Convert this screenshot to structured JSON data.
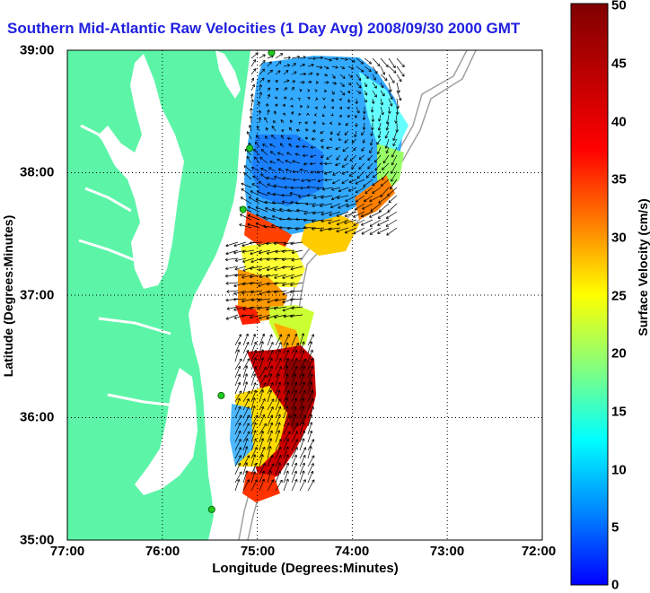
{
  "title": "Southern Mid-Atlantic Raw Velocities (1 Day Avg) 2008/09/30 2000 GMT",
  "x_axis": {
    "label": "Longitude (Degrees:Minutes)",
    "ticks": [
      "77:00",
      "76:00",
      "75:00",
      "74:00",
      "73:00",
      "72:00"
    ],
    "tick_values": [
      -77,
      -76,
      -75,
      -74,
      -73,
      -72
    ],
    "range": [
      -77,
      -72
    ]
  },
  "y_axis": {
    "label": "Latitude (Degrees:Minutes)",
    "ticks": [
      "39:00",
      "38:00",
      "37:00",
      "36:00",
      "35:00"
    ],
    "tick_values": [
      39,
      38,
      37,
      36,
      35
    ],
    "range": [
      35,
      39
    ]
  },
  "colorbar": {
    "label": "Surface Velocity (cm/s)",
    "ticks": [
      "50",
      "45",
      "40",
      "35",
      "30",
      "25",
      "20",
      "15",
      "10",
      "5",
      "0"
    ],
    "range": [
      0,
      50
    ],
    "colormap": "jet"
  },
  "colors": {
    "title": "#1f1fe0",
    "land": "#5cf5a8",
    "station": "#22cc22",
    "isobath": "#a0a0a0",
    "vector": "#000000"
  },
  "grid": "dotted",
  "stations": [
    {
      "lon": -74.85,
      "lat": 38.98
    },
    {
      "lon": -75.08,
      "lat": 38.2
    },
    {
      "lon": -75.15,
      "lat": 37.7
    },
    {
      "lon": -75.38,
      "lat": 36.18
    },
    {
      "lon": -75.48,
      "lat": 35.25
    }
  ]
}
